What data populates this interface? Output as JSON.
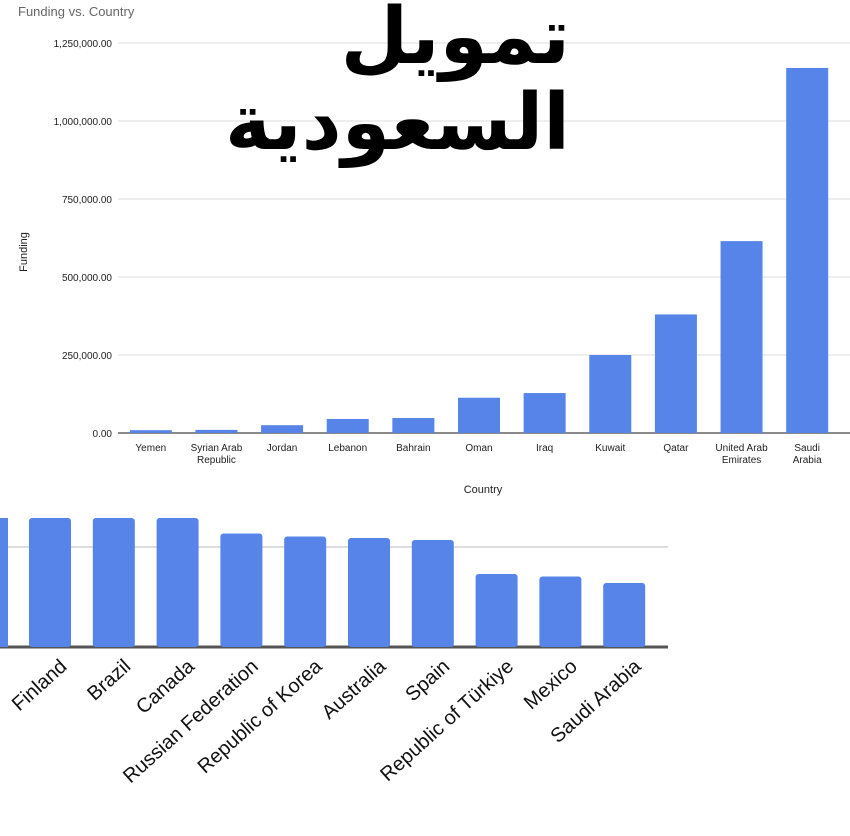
{
  "overlay_text": "تمويل\nالسعودية",
  "colors": {
    "bar": "#5684e8",
    "grid": "#dddddd",
    "axis": "#444444",
    "text": "#222222",
    "muted": "#666666"
  },
  "chart_data": [
    {
      "type": "bar",
      "title": "Funding vs. Country",
      "xlabel": "Country",
      "ylabel": "Funding",
      "ylim": [
        0,
        1250000
      ],
      "yticks": [
        0,
        250000,
        500000,
        750000,
        1000000,
        1250000
      ],
      "ytick_labels": [
        "0.00",
        "250,000.00",
        "500,000.00",
        "750,000.00",
        "1,000,000.00",
        "1,250,000.00"
      ],
      "grid": true,
      "categories": [
        "Yemen",
        "Syrian Arab Republic",
        "Jordan",
        "Lebanon",
        "Bahrain",
        "Oman",
        "Iraq",
        "Kuwait",
        "Qatar",
        "United Arab Emirates",
        "Saudi Arabia"
      ],
      "category_labels": [
        [
          "Yemen"
        ],
        [
          "Syrian Arab",
          "Republic"
        ],
        [
          "Jordan"
        ],
        [
          "Lebanon"
        ],
        [
          "Bahrain"
        ],
        [
          "Oman"
        ],
        [
          "Iraq"
        ],
        [
          "Kuwait"
        ],
        [
          "Qatar"
        ],
        [
          "United Arab",
          "Emirates"
        ],
        [
          "Saudi",
          "Arabia"
        ]
      ],
      "values": [
        9000,
        10000,
        25000,
        45000,
        48000,
        113000,
        128000,
        250000,
        380000,
        615000,
        1170000
      ]
    },
    {
      "type": "bar",
      "grid": true,
      "partial": true,
      "categories": [
        "Finland",
        "Brazil",
        "Canada",
        "Russian Federation",
        "Republic of Korea",
        "Australia",
        "Spain",
        "Republic of Türkiye",
        "Mexico",
        "Saudi Arabia"
      ],
      "values": [
        1.3,
        1.3,
        1.3,
        1.135,
        1.105,
        1.09,
        1.07,
        0.73,
        0.705,
        0.64
      ]
    }
  ]
}
